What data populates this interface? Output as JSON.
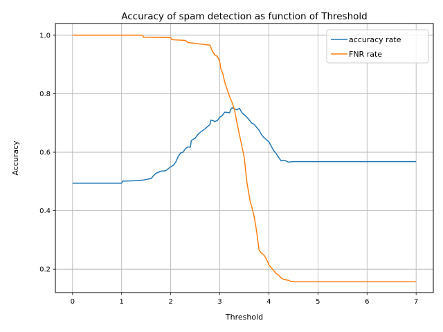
{
  "chart_data": {
    "type": "line",
    "title": "Accuracy of spam detection as function of Threshold",
    "xlabel": "Threshold",
    "ylabel": "Accuracy",
    "xlim": [
      -0.35,
      7.35
    ],
    "ylim": [
      0.12,
      1.04
    ],
    "xticks": [
      0,
      1,
      2,
      3,
      4,
      5,
      6,
      7
    ],
    "xtick_labels": [
      "0",
      "1",
      "2",
      "3",
      "4",
      "5",
      "6",
      "7"
    ],
    "yticks": [
      0.2,
      0.4,
      0.6,
      0.8,
      1.0
    ],
    "ytick_labels": [
      "0.2",
      "0.4",
      "0.6",
      "0.8",
      "1.0"
    ],
    "grid": true,
    "legend_position": "top-right",
    "series": [
      {
        "name": "accuracy rate",
        "color": "#1f77b4",
        "points": [
          [
            0.0,
            0.494
          ],
          [
            0.5,
            0.494
          ],
          [
            1.0,
            0.494
          ],
          [
            1.02,
            0.501
          ],
          [
            1.2,
            0.502
          ],
          [
            1.3,
            0.503
          ],
          [
            1.45,
            0.505
          ],
          [
            1.6,
            0.51
          ],
          [
            1.65,
            0.52
          ],
          [
            1.7,
            0.528
          ],
          [
            1.8,
            0.535
          ],
          [
            1.9,
            0.537
          ],
          [
            2.0,
            0.55
          ],
          [
            2.05,
            0.555
          ],
          [
            2.1,
            0.565
          ],
          [
            2.15,
            0.585
          ],
          [
            2.2,
            0.597
          ],
          [
            2.25,
            0.6
          ],
          [
            2.3,
            0.612
          ],
          [
            2.35,
            0.618
          ],
          [
            2.4,
            0.617
          ],
          [
            2.42,
            0.64
          ],
          [
            2.5,
            0.648
          ],
          [
            2.55,
            0.66
          ],
          [
            2.6,
            0.668
          ],
          [
            2.7,
            0.68
          ],
          [
            2.8,
            0.695
          ],
          [
            2.82,
            0.71
          ],
          [
            2.9,
            0.705
          ],
          [
            2.95,
            0.708
          ],
          [
            3.0,
            0.72
          ],
          [
            3.05,
            0.725
          ],
          [
            3.1,
            0.737
          ],
          [
            3.2,
            0.735
          ],
          [
            3.22,
            0.745
          ],
          [
            3.25,
            0.752
          ],
          [
            3.3,
            0.748
          ],
          [
            3.35,
            0.745
          ],
          [
            3.4,
            0.75
          ],
          [
            3.45,
            0.735
          ],
          [
            3.5,
            0.728
          ],
          [
            3.55,
            0.72
          ],
          [
            3.6,
            0.71
          ],
          [
            3.65,
            0.7
          ],
          [
            3.7,
            0.695
          ],
          [
            3.75,
            0.685
          ],
          [
            3.8,
            0.675
          ],
          [
            3.85,
            0.66
          ],
          [
            3.9,
            0.65
          ],
          [
            4.0,
            0.635
          ],
          [
            4.05,
            0.62
          ],
          [
            4.1,
            0.605
          ],
          [
            4.15,
            0.595
          ],
          [
            4.2,
            0.582
          ],
          [
            4.25,
            0.57
          ],
          [
            4.3,
            0.572
          ],
          [
            4.35,
            0.57
          ],
          [
            4.4,
            0.566
          ],
          [
            4.5,
            0.568
          ],
          [
            5.0,
            0.568
          ],
          [
            6.0,
            0.568
          ],
          [
            7.0,
            0.568
          ]
        ]
      },
      {
        "name": "FNR rate",
        "color": "#ff7f0e",
        "points": [
          [
            0.0,
            1.0
          ],
          [
            1.0,
            1.0
          ],
          [
            1.43,
            1.0
          ],
          [
            1.45,
            0.993
          ],
          [
            2.0,
            0.992
          ],
          [
            2.02,
            0.985
          ],
          [
            2.3,
            0.982
          ],
          [
            2.35,
            0.975
          ],
          [
            2.6,
            0.97
          ],
          [
            2.8,
            0.966
          ],
          [
            2.85,
            0.945
          ],
          [
            2.9,
            0.932
          ],
          [
            2.95,
            0.928
          ],
          [
            3.0,
            0.91
          ],
          [
            3.02,
            0.885
          ],
          [
            3.06,
            0.87
          ],
          [
            3.1,
            0.84
          ],
          [
            3.15,
            0.815
          ],
          [
            3.2,
            0.79
          ],
          [
            3.25,
            0.77
          ],
          [
            3.3,
            0.745
          ],
          [
            3.35,
            0.7
          ],
          [
            3.4,
            0.66
          ],
          [
            3.45,
            0.62
          ],
          [
            3.5,
            0.58
          ],
          [
            3.55,
            0.5
          ],
          [
            3.6,
            0.45
          ],
          [
            3.62,
            0.43
          ],
          [
            3.65,
            0.415
          ],
          [
            3.7,
            0.38
          ],
          [
            3.75,
            0.33
          ],
          [
            3.78,
            0.29
          ],
          [
            3.8,
            0.265
          ],
          [
            3.85,
            0.255
          ],
          [
            3.9,
            0.248
          ],
          [
            3.95,
            0.235
          ],
          [
            4.0,
            0.215
          ],
          [
            4.05,
            0.205
          ],
          [
            4.1,
            0.195
          ],
          [
            4.15,
            0.185
          ],
          [
            4.2,
            0.18
          ],
          [
            4.25,
            0.17
          ],
          [
            4.3,
            0.165
          ],
          [
            4.4,
            0.162
          ],
          [
            4.45,
            0.158
          ],
          [
            4.5,
            0.157
          ],
          [
            5.0,
            0.157
          ],
          [
            6.0,
            0.157
          ],
          [
            7.0,
            0.157
          ]
        ]
      }
    ]
  }
}
